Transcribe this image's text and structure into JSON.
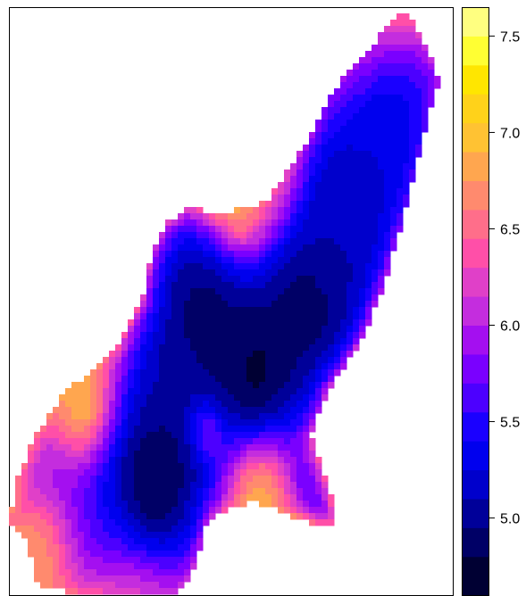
{
  "chart_data": {
    "type": "heatmap",
    "title": "",
    "xlabel": "",
    "ylabel": "",
    "legend_position": "right",
    "colorbar": {
      "range": [
        4.6,
        7.65
      ],
      "ticks": [
        5.0,
        5.5,
        6.0,
        6.5,
        7.0,
        7.5
      ],
      "tick_labels": [
        "5.0",
        "5.5",
        "6.0",
        "6.5",
        "7.0",
        "7.5"
      ],
      "bins": [
        {
          "from": 4.6,
          "to": 4.8,
          "color": "#000033"
        },
        {
          "from": 4.8,
          "to": 4.95,
          "color": "#000066"
        },
        {
          "from": 4.95,
          "to": 5.1,
          "color": "#000099"
        },
        {
          "from": 5.1,
          "to": 5.25,
          "color": "#0000cc"
        },
        {
          "from": 5.25,
          "to": 5.4,
          "color": "#0000ee"
        },
        {
          "from": 5.4,
          "to": 5.55,
          "color": "#1a00ff"
        },
        {
          "from": 5.55,
          "to": 5.7,
          "color": "#4c00ff"
        },
        {
          "from": 5.7,
          "to": 5.85,
          "color": "#7a00ff"
        },
        {
          "from": 5.85,
          "to": 6.0,
          "color": "#a40ff0"
        },
        {
          "from": 6.0,
          "to": 6.15,
          "color": "#c42dde"
        },
        {
          "from": 6.15,
          "to": 6.3,
          "color": "#e040c8"
        },
        {
          "from": 6.3,
          "to": 6.45,
          "color": "#ff4fa8"
        },
        {
          "from": 6.45,
          "to": 6.6,
          "color": "#ff6e8a"
        },
        {
          "from": 6.6,
          "to": 6.75,
          "color": "#ff8a6e"
        },
        {
          "from": 6.75,
          "to": 6.9,
          "color": "#ffa64f"
        },
        {
          "from": 6.9,
          "to": 7.05,
          "color": "#ffc233"
        },
        {
          "from": 7.05,
          "to": 7.2,
          "color": "#ffd21a"
        },
        {
          "from": 7.2,
          "to": 7.35,
          "color": "#ffe600"
        },
        {
          "from": 7.35,
          "to": 7.5,
          "color": "#ffff33"
        },
        {
          "from": 7.5,
          "to": 7.65,
          "color": "#ffff80"
        }
      ]
    },
    "field": {
      "outline": [
        [
          0.89,
          0.0
        ],
        [
          0.92,
          0.04
        ],
        [
          0.97,
          0.12
        ],
        [
          0.94,
          0.2
        ],
        [
          0.9,
          0.33
        ],
        [
          0.85,
          0.46
        ],
        [
          0.8,
          0.56
        ],
        [
          0.72,
          0.65
        ],
        [
          0.68,
          0.73
        ],
        [
          0.72,
          0.81
        ],
        [
          0.74,
          0.88
        ],
        [
          0.69,
          0.88
        ],
        [
          0.55,
          0.84
        ],
        [
          0.45,
          0.87
        ],
        [
          0.42,
          0.95
        ],
        [
          0.38,
          1.0
        ],
        [
          0.16,
          1.0
        ],
        [
          0.06,
          0.98
        ],
        [
          0.04,
          0.9
        ],
        [
          0.0,
          0.88
        ],
        [
          0.02,
          0.8
        ],
        [
          0.06,
          0.73
        ],
        [
          0.12,
          0.66
        ],
        [
          0.24,
          0.58
        ],
        [
          0.3,
          0.5
        ],
        [
          0.32,
          0.42
        ],
        [
          0.35,
          0.37
        ],
        [
          0.4,
          0.34
        ],
        [
          0.48,
          0.35
        ],
        [
          0.58,
          0.33
        ],
        [
          0.68,
          0.22
        ],
        [
          0.72,
          0.15
        ],
        [
          0.8,
          0.08
        ]
      ],
      "bumps": [
        {
          "x": 0.86,
          "y": 0.0,
          "v": 7.3,
          "r": 0.05
        },
        {
          "x": 0.52,
          "y": 0.35,
          "v": 7.2,
          "r": 0.06
        },
        {
          "x": 0.62,
          "y": 0.3,
          "v": 7.0,
          "r": 0.06
        },
        {
          "x": 0.56,
          "y": 0.8,
          "v": 7.2,
          "r": 0.06
        },
        {
          "x": 0.17,
          "y": 0.68,
          "v": 7.0,
          "r": 0.06
        },
        {
          "x": 0.45,
          "y": 0.72,
          "v": 6.5,
          "r": 0.03
        },
        {
          "x": 0.82,
          "y": 0.1,
          "v": 7.0,
          "r": 0.07
        },
        {
          "x": 0.06,
          "y": 0.94,
          "v": 6.7,
          "r": 0.08
        },
        {
          "x": 0.3,
          "y": 0.99,
          "v": 6.5,
          "r": 0.08
        },
        {
          "x": 0.33,
          "y": 0.81,
          "v": 4.8,
          "r": 0.08
        },
        {
          "x": 0.55,
          "y": 0.61,
          "v": 4.75,
          "r": 0.08
        },
        {
          "x": 0.68,
          "y": 0.48,
          "v": 4.8,
          "r": 0.07
        },
        {
          "x": 0.44,
          "y": 0.52,
          "v": 4.9,
          "r": 0.07
        },
        {
          "x": 0.85,
          "y": 0.2,
          "v": 5.3,
          "r": 0.1
        },
        {
          "x": 0.74,
          "y": 0.35,
          "v": 5.1,
          "r": 0.08
        }
      ],
      "base_value": 5.6,
      "edge_value": 6.5
    }
  }
}
